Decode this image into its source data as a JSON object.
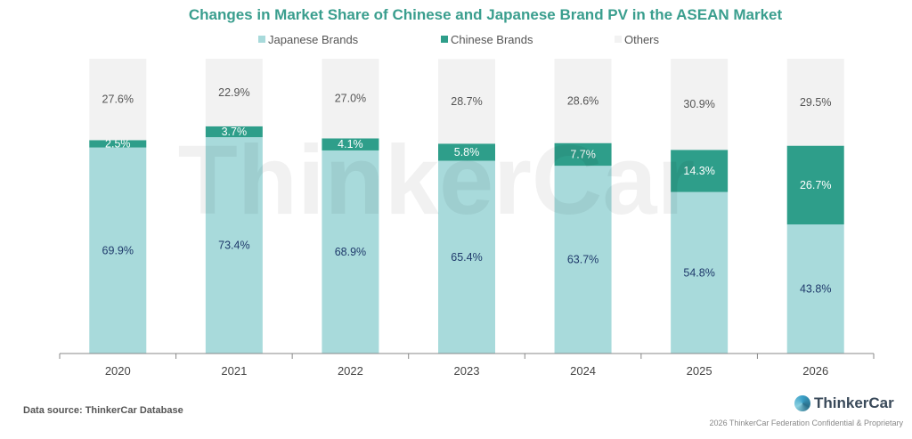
{
  "chart_data": {
    "type": "bar",
    "stacked": true,
    "title": "Changes in Market Share of Chinese and Japanese Brand PV in the ASEAN Market",
    "categories": [
      "2020",
      "2021",
      "2022",
      "2023",
      "2024",
      "2025",
      "2026"
    ],
    "series": [
      {
        "name": "Japanese Brands",
        "color": "#a8dadb",
        "label_color": "#1f3a6b",
        "values": [
          69.9,
          73.4,
          68.9,
          65.4,
          63.7,
          54.8,
          43.8
        ]
      },
      {
        "name": "Chinese Brands",
        "color": "#2e9e8a",
        "label_color": "#ffffff",
        "values": [
          2.5,
          3.7,
          4.1,
          5.8,
          7.7,
          14.3,
          26.7
        ]
      },
      {
        "name": "Others",
        "color": "#f2f2f2",
        "label_color": "#555555",
        "values": [
          27.6,
          22.9,
          27.0,
          28.7,
          28.6,
          30.9,
          29.5
        ]
      }
    ],
    "ylim": [
      0,
      100
    ],
    "legend": "top",
    "xlabel": "",
    "ylabel": ""
  },
  "watermark": "ThinkerCar",
  "footer": {
    "source": "Data source: ThinkerCar Database",
    "logo": "ThinkerCar",
    "copyright": "2026 ThinkerCar Federation Confidential & Proprietary"
  }
}
